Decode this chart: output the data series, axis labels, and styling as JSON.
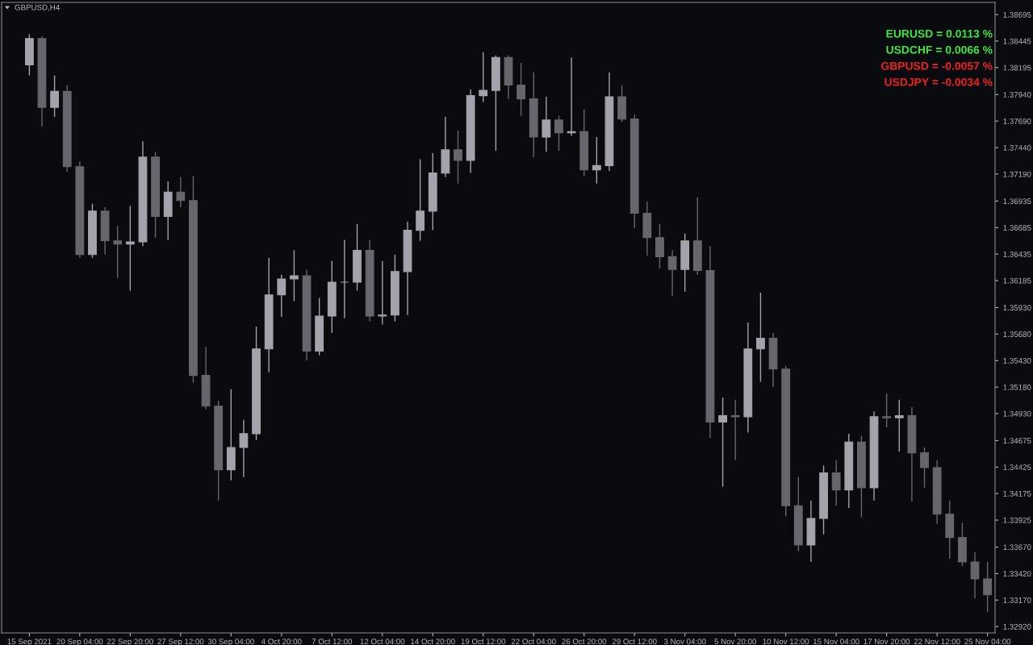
{
  "chart_data": {
    "type": "candlestick",
    "title": "GBPUSD,H4",
    "categories": [
      "15 Sep 2021",
      null,
      null,
      null,
      "20 Sep 04:00",
      null,
      null,
      null,
      "22 Sep 20:00",
      null,
      null,
      null,
      "27 Sep 12:00",
      null,
      null,
      null,
      "30 Sep 04:00",
      null,
      null,
      null,
      "4 Oct 20:00",
      null,
      null,
      null,
      "7 Oct 12:00",
      null,
      null,
      null,
      "12 Oct 04:00",
      null,
      null,
      null,
      "14 Oct 20:00",
      null,
      null,
      null,
      "19 Oct 12:00",
      null,
      null,
      null,
      "22 Oct 04:00",
      null,
      null,
      null,
      "26 Oct 20:00",
      null,
      null,
      null,
      "29 Oct 12:00",
      null,
      null,
      null,
      "3 Nov 04:00",
      null,
      null,
      null,
      "5 Nov 20:00",
      null,
      null,
      null,
      "10 Nov 12:00",
      null,
      null,
      null,
      "15 Nov 04:00",
      null,
      null,
      null,
      "17 Nov 20:00",
      null,
      null,
      null,
      "22 Nov 12:00",
      null,
      null,
      null,
      "25 Nov 04:00"
    ],
    "ohlc": [
      [
        1.3822,
        1.3851,
        1.3812,
        1.3847
      ],
      [
        1.3847,
        1.3849,
        1.3764,
        1.3782
      ],
      [
        1.3782,
        1.3812,
        1.3773,
        1.3797
      ],
      [
        1.3797,
        1.3803,
        1.3721,
        1.3726
      ],
      [
        1.3726,
        1.3731,
        1.364,
        1.3643
      ],
      [
        1.3643,
        1.3691,
        1.364,
        1.3684
      ],
      [
        1.3684,
        1.3688,
        1.3643,
        1.3656
      ],
      [
        1.3656,
        1.367,
        1.3621,
        1.3653
      ],
      [
        1.3653,
        1.3689,
        1.3609,
        1.3655
      ],
      [
        1.3655,
        1.375,
        1.3651,
        1.3735
      ],
      [
        1.3735,
        1.374,
        1.3659,
        1.3679
      ],
      [
        1.3679,
        1.3712,
        1.3657,
        1.3702
      ],
      [
        1.3702,
        1.3716,
        1.3688,
        1.3694
      ],
      [
        1.3694,
        1.3717,
        1.3522,
        1.3529
      ],
      [
        1.3529,
        1.3556,
        1.3497,
        1.35
      ],
      [
        1.35,
        1.3505,
        1.3411,
        1.344
      ],
      [
        1.344,
        1.3516,
        1.343,
        1.3461
      ],
      [
        1.3461,
        1.3487,
        1.3433,
        1.3474
      ],
      [
        1.3474,
        1.3575,
        1.3468,
        1.3554
      ],
      [
        1.3554,
        1.364,
        1.3532,
        1.3605
      ],
      [
        1.3605,
        1.3624,
        1.3584,
        1.362
      ],
      [
        1.362,
        1.3647,
        1.3599,
        1.3623
      ],
      [
        1.3623,
        1.3629,
        1.3543,
        1.3552
      ],
      [
        1.3552,
        1.3602,
        1.3548,
        1.3585
      ],
      [
        1.3585,
        1.3637,
        1.3569,
        1.3617
      ],
      [
        1.3617,
        1.3657,
        1.3583,
        1.3617
      ],
      [
        1.3617,
        1.3672,
        1.3609,
        1.3647
      ],
      [
        1.3647,
        1.3657,
        1.358,
        1.3585
      ],
      [
        1.3585,
        1.3637,
        1.3577,
        1.3586
      ],
      [
        1.3586,
        1.3643,
        1.358,
        1.3627
      ],
      [
        1.3627,
        1.3674,
        1.3586,
        1.3666
      ],
      [
        1.3666,
        1.3733,
        1.3656,
        1.3684
      ],
      [
        1.3684,
        1.3739,
        1.3666,
        1.372
      ],
      [
        1.372,
        1.3773,
        1.3716,
        1.3742
      ],
      [
        1.3742,
        1.376,
        1.371,
        1.3732
      ],
      [
        1.3732,
        1.3799,
        1.372,
        1.3793
      ],
      [
        1.3793,
        1.3834,
        1.3787,
        1.3798
      ],
      [
        1.3798,
        1.3831,
        1.3741,
        1.3829
      ],
      [
        1.3829,
        1.3831,
        1.379,
        1.3803
      ],
      [
        1.3803,
        1.3824,
        1.3774,
        1.379
      ],
      [
        1.379,
        1.3815,
        1.3735,
        1.3754
      ],
      [
        1.3754,
        1.3792,
        1.374,
        1.377
      ],
      [
        1.377,
        1.3774,
        1.3741,
        1.3758
      ],
      [
        1.3758,
        1.3829,
        1.3755,
        1.3759
      ],
      [
        1.3759,
        1.378,
        1.3717,
        1.3723
      ],
      [
        1.3723,
        1.3754,
        1.371,
        1.3727
      ],
      [
        1.3727,
        1.3815,
        1.3722,
        1.3792
      ],
      [
        1.3792,
        1.3803,
        1.3768,
        1.3771
      ],
      [
        1.3771,
        1.3775,
        1.3668,
        1.3682
      ],
      [
        1.3682,
        1.3693,
        1.3642,
        1.3659
      ],
      [
        1.3659,
        1.3672,
        1.363,
        1.3641
      ],
      [
        1.3641,
        1.3647,
        1.3604,
        1.3629
      ],
      [
        1.3629,
        1.3663,
        1.3608,
        1.3656
      ],
      [
        1.3656,
        1.3697,
        1.3624,
        1.3628
      ],
      [
        1.3628,
        1.3651,
        1.347,
        1.3485
      ],
      [
        1.3485,
        1.3508,
        1.3424,
        1.3491
      ],
      [
        1.3491,
        1.3506,
        1.3449,
        1.349
      ],
      [
        1.349,
        1.3579,
        1.3475,
        1.3554
      ],
      [
        1.3554,
        1.3607,
        1.3523,
        1.3564
      ],
      [
        1.3564,
        1.3569,
        1.3518,
        1.3535
      ],
      [
        1.3535,
        1.3538,
        1.3396,
        1.3406
      ],
      [
        1.3406,
        1.3433,
        1.3363,
        1.3369
      ],
      [
        1.3369,
        1.3411,
        1.3353,
        1.3394
      ],
      [
        1.3394,
        1.3444,
        1.3379,
        1.3437
      ],
      [
        1.3437,
        1.3449,
        1.3406,
        1.3421
      ],
      [
        1.3421,
        1.3474,
        1.3404,
        1.3466
      ],
      [
        1.3466,
        1.3472,
        1.3395,
        1.3423
      ],
      [
        1.3423,
        1.3495,
        1.3411,
        1.349
      ],
      [
        1.349,
        1.3512,
        1.348,
        1.3489
      ],
      [
        1.3489,
        1.3506,
        1.3457,
        1.3491
      ],
      [
        1.3491,
        1.3499,
        1.341,
        1.3456
      ],
      [
        1.3456,
        1.3461,
        1.3423,
        1.3442
      ],
      [
        1.3442,
        1.3449,
        1.3389,
        1.3398
      ],
      [
        1.3398,
        1.3411,
        1.3356,
        1.3376
      ],
      [
        1.3376,
        1.339,
        1.3349,
        1.3353
      ],
      [
        1.3353,
        1.3362,
        1.3319,
        1.3337
      ],
      [
        1.3337,
        1.3353,
        1.3306,
        1.3322
      ]
    ],
    "colors": [
      "#a3a3ab",
      "#66666d",
      "#a3a3ab",
      "#66666d",
      "#66666d",
      "#a3a3ab",
      "#66666d",
      "#66666d",
      "#a3a3ab",
      "#a3a3ab",
      "#66666d",
      "#a3a3ab",
      "#66666d",
      "#66666d",
      "#66666d",
      "#66666d",
      "#a3a3ab",
      "#a3a3ab",
      "#a3a3ab",
      "#a3a3ab",
      "#a3a3ab",
      "#a3a3ab",
      "#66666d",
      "#a3a3ab",
      "#a3a3ab",
      "#a3a3ab",
      "#a3a3ab",
      "#66666d",
      "#a3a3ab",
      "#a3a3ab",
      "#a3a3ab",
      "#a3a3ab",
      "#a3a3ab",
      "#a3a3ab",
      "#66666d",
      "#a3a3ab",
      "#a3a3ab",
      "#a3a3ab",
      "#66666d",
      "#66666d",
      "#66666d",
      "#a3a3ab",
      "#66666d",
      "#a3a3ab",
      "#66666d",
      "#a3a3ab",
      "#a3a3ab",
      "#66666d",
      "#66666d",
      "#66666d",
      "#66666d",
      "#66666d",
      "#a3a3ab",
      "#66666d",
      "#66666d",
      "#a3a3ab",
      "#66666d",
      "#a3a3ab",
      "#a3a3ab",
      "#66666d",
      "#66666d",
      "#66666d",
      "#a3a3ab",
      "#a3a3ab",
      "#66666d",
      "#a3a3ab",
      "#66666d",
      "#a3a3ab",
      "#66666d",
      "#a3a3ab",
      "#66666d",
      "#66666d",
      "#66666d",
      "#66666d",
      "#66666d",
      "#66666d",
      "#66666d"
    ],
    "ylim": [
      1.3286,
      1.3881
    ],
    "yticks": [
      1.38695,
      1.38445,
      1.38195,
      {
        "value": 1.3794,
        "label": "1.37940"
      },
      {
        "value": 1.3769,
        "label": "1.37690"
      },
      {
        "value": 1.3744,
        "label": "1.37440"
      },
      {
        "value": 1.3719,
        "label": "1.37190"
      },
      1.36935,
      1.36685,
      1.36435,
      1.36185,
      {
        "value": 1.3593,
        "label": "1.35930"
      },
      {
        "value": 1.3568,
        "label": "1.35680"
      },
      {
        "value": 1.3543,
        "label": "1.35430"
      },
      {
        "value": 1.3518,
        "label": "1.35180"
      },
      {
        "value": 1.3493,
        "label": "1.34930"
      },
      1.34675,
      1.34425,
      1.34175,
      1.33925,
      {
        "value": 1.3367,
        "label": "1.33670"
      },
      {
        "value": 1.3342,
        "label": "1.33420"
      },
      {
        "value": 1.3317,
        "label": "1.33170"
      },
      {
        "value": 1.3292,
        "label": "1.32920"
      }
    ],
    "annotations": [
      "EURUSD = 0.0113 %",
      "USDCHF = 0.0066 %",
      "GBPUSD = -0.0057 %",
      "USDJPY = -0.0034 %"
    ]
  }
}
